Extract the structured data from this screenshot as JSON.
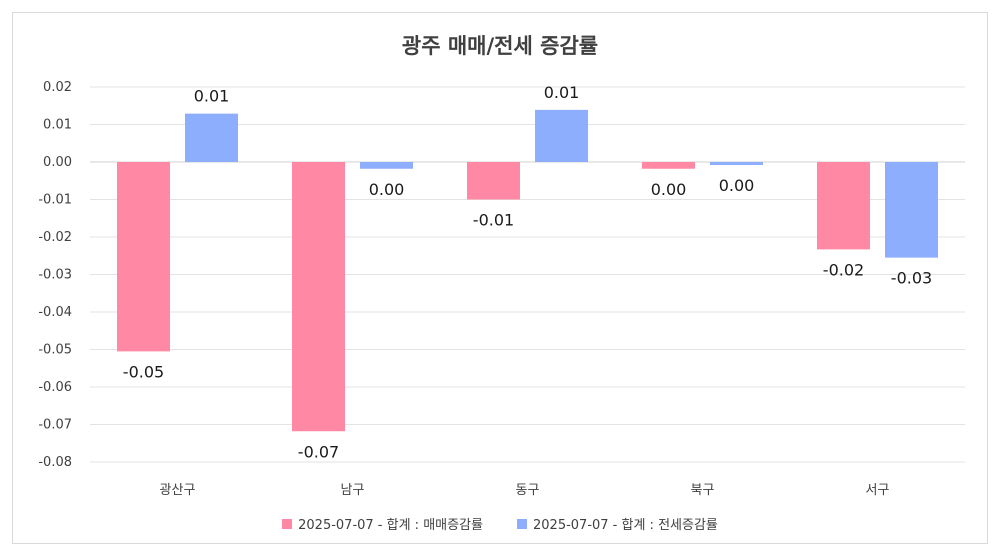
{
  "chart_data": {
    "type": "bar",
    "title": "광주 매매/전세 증감률",
    "categories": [
      "광산구",
      "남구",
      "동구",
      "북구",
      "서구"
    ],
    "series": [
      {
        "name": "2025-07-07 - 합계 : 매매증감률",
        "color": "#ff88a4",
        "values": [
          -0.0505,
          -0.0718,
          -0.01,
          -0.0018,
          -0.0233
        ],
        "labels": [
          "-0.05",
          "-0.07",
          "-0.01",
          "0.00",
          "-0.02"
        ]
      },
      {
        "name": "2025-07-07 - 합계 : 전세증감률",
        "color": "#8daefc",
        "values": [
          0.0129,
          -0.0018,
          0.0139,
          -0.0008,
          -0.0255
        ],
        "labels": [
          "0.01",
          "0.00",
          "0.01",
          "0.00",
          "-0.03"
        ]
      }
    ],
    "yticks": [
      "0.02",
      "0.01",
      "0.00",
      "-0.01",
      "-0.02",
      "-0.03",
      "-0.04",
      "-0.05",
      "-0.06",
      "-0.07",
      "-0.08"
    ],
    "ylim": [
      -0.08,
      0.02
    ],
    "grid": true,
    "legend_position": "bottom"
  }
}
